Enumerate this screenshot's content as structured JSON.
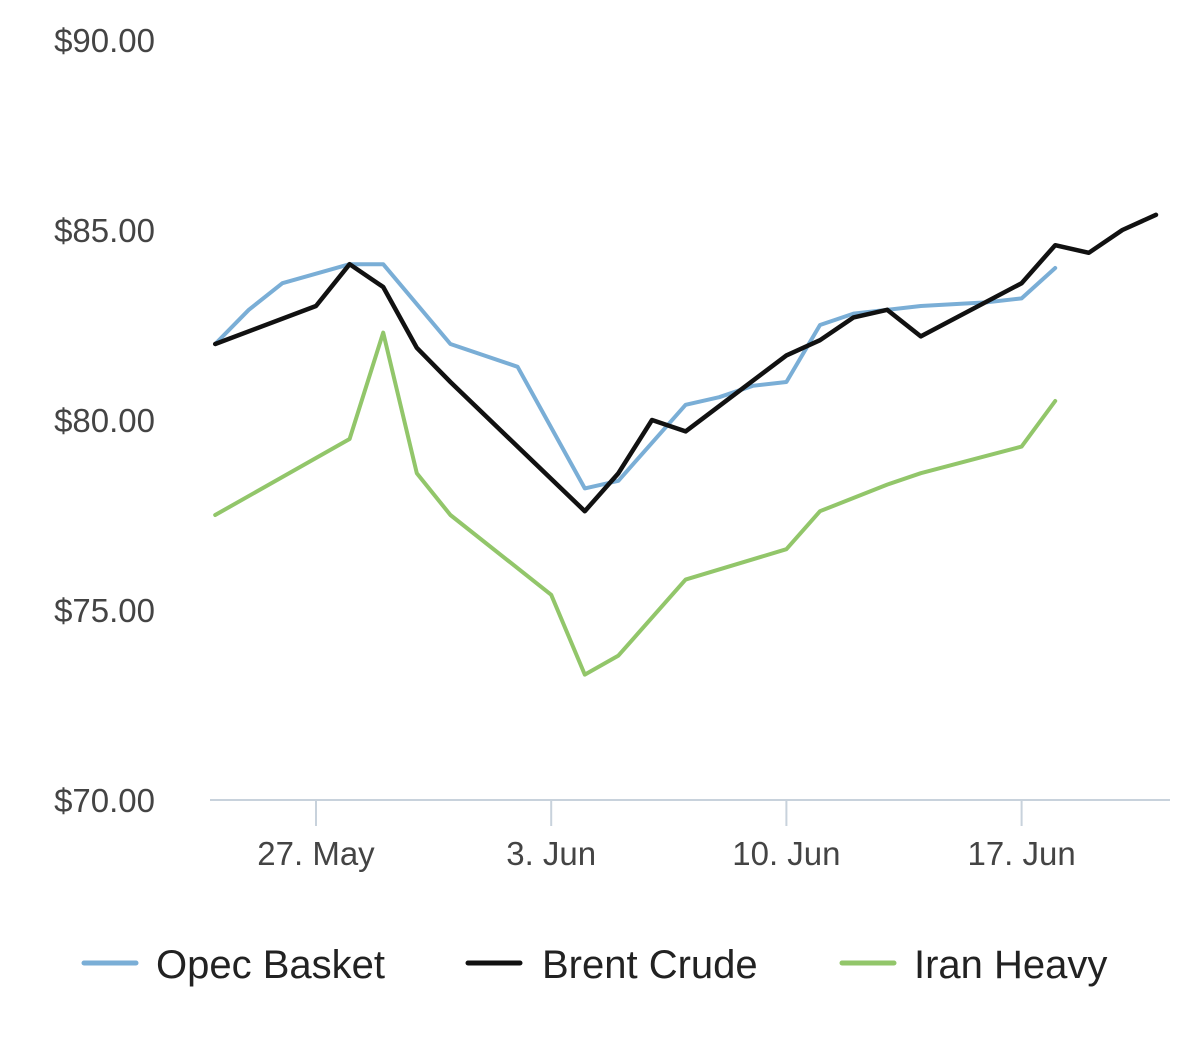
{
  "colors": {
    "opec_basket": "#7aaed6",
    "brent_crude": "#111111",
    "iran_heavy": "#92c66a",
    "axis": "#c8d2dc",
    "tick_text": "#444444"
  },
  "chart_data": {
    "type": "line",
    "title": "",
    "xlabel": "",
    "ylabel": "",
    "ylim": [
      70,
      90
    ],
    "yticks": [
      70,
      75,
      80,
      85,
      90
    ],
    "ytick_labels": [
      "$70.00",
      "$75.00",
      "$80.00",
      "$85.00",
      "$90.00"
    ],
    "xticks": [
      "2018-05-27",
      "2018-06-03",
      "2018-06-10",
      "2018-06-17"
    ],
    "xtick_labels": [
      "27. May",
      "3. Jun",
      "10. Jun",
      "17. Jun"
    ],
    "grid": false,
    "legend_position": "bottom",
    "series": [
      {
        "name": "Opec Basket",
        "color_key": "opec_basket",
        "points": [
          [
            "2018-05-24",
            82.0
          ],
          [
            "2018-05-25",
            82.9
          ],
          [
            "2018-05-26",
            83.6
          ],
          [
            "2018-05-28",
            84.1
          ],
          [
            "2018-05-29",
            84.1
          ],
          [
            "2018-05-31",
            82.0
          ],
          [
            "2018-06-02",
            81.4
          ],
          [
            "2018-06-04",
            78.2
          ],
          [
            "2018-06-05",
            78.4
          ],
          [
            "2018-06-06",
            79.4
          ],
          [
            "2018-06-07",
            80.4
          ],
          [
            "2018-06-08",
            80.6
          ],
          [
            "2018-06-09",
            80.9
          ],
          [
            "2018-06-10",
            81.0
          ],
          [
            "2018-06-11",
            82.5
          ],
          [
            "2018-06-12",
            82.8
          ],
          [
            "2018-06-13",
            82.9
          ],
          [
            "2018-06-14",
            83.0
          ],
          [
            "2018-06-16",
            83.1
          ],
          [
            "2018-06-17",
            83.2
          ],
          [
            "2018-06-18",
            84.0
          ]
        ]
      },
      {
        "name": "Brent Crude",
        "color_key": "brent_crude",
        "points": [
          [
            "2018-05-24",
            82.0
          ],
          [
            "2018-05-27",
            83.0
          ],
          [
            "2018-05-28",
            84.1
          ],
          [
            "2018-05-29",
            83.5
          ],
          [
            "2018-05-30",
            81.9
          ],
          [
            "2018-05-31",
            81.0
          ],
          [
            "2018-06-04",
            77.6
          ],
          [
            "2018-06-05",
            78.6
          ],
          [
            "2018-06-06",
            80.0
          ],
          [
            "2018-06-07",
            79.7
          ],
          [
            "2018-06-10",
            81.7
          ],
          [
            "2018-06-11",
            82.1
          ],
          [
            "2018-06-12",
            82.7
          ],
          [
            "2018-06-13",
            82.9
          ],
          [
            "2018-06-14",
            82.2
          ],
          [
            "2018-06-17",
            83.6
          ],
          [
            "2018-06-18",
            84.6
          ],
          [
            "2018-06-19",
            84.4
          ],
          [
            "2018-06-20",
            85.0
          ],
          [
            "2018-06-21",
            85.4
          ]
        ]
      },
      {
        "name": "Iran Heavy",
        "color_key": "iran_heavy",
        "points": [
          [
            "2018-05-24",
            77.5
          ],
          [
            "2018-05-28",
            79.5
          ],
          [
            "2018-05-29",
            82.3
          ],
          [
            "2018-05-30",
            78.6
          ],
          [
            "2018-05-31",
            77.5
          ],
          [
            "2018-06-03",
            75.4
          ],
          [
            "2018-06-04",
            73.3
          ],
          [
            "2018-06-05",
            73.8
          ],
          [
            "2018-06-07",
            75.8
          ],
          [
            "2018-06-10",
            76.6
          ],
          [
            "2018-06-11",
            77.6
          ],
          [
            "2018-06-13",
            78.3
          ],
          [
            "2018-06-14",
            78.6
          ],
          [
            "2018-06-17",
            79.3
          ],
          [
            "2018-06-18",
            80.5
          ]
        ]
      }
    ]
  }
}
